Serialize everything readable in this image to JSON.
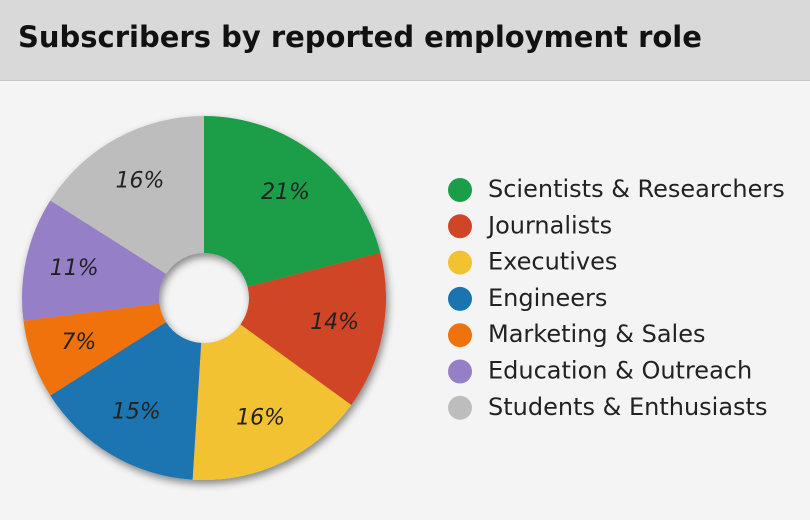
{
  "chart_data": {
    "type": "donut",
    "title": "Subscribers by reported employment role",
    "categories": [
      "Scientists & Researchers",
      "Journalists",
      "Executives",
      "Engineers",
      "Marketing & Sales",
      "Education & Outreach",
      "Students & Enthusiasts"
    ],
    "values": [
      21,
      14,
      16,
      15,
      7,
      11,
      16
    ],
    "value_labels": [
      "21%",
      "14%",
      "16%",
      "15%",
      "7%",
      "11%",
      "16%"
    ],
    "colors": [
      "#1a9e4a",
      "#d04526",
      "#f2c230",
      "#1a74b0",
      "#f0720c",
      "#9580c8",
      "#bdbdbd"
    ]
  }
}
